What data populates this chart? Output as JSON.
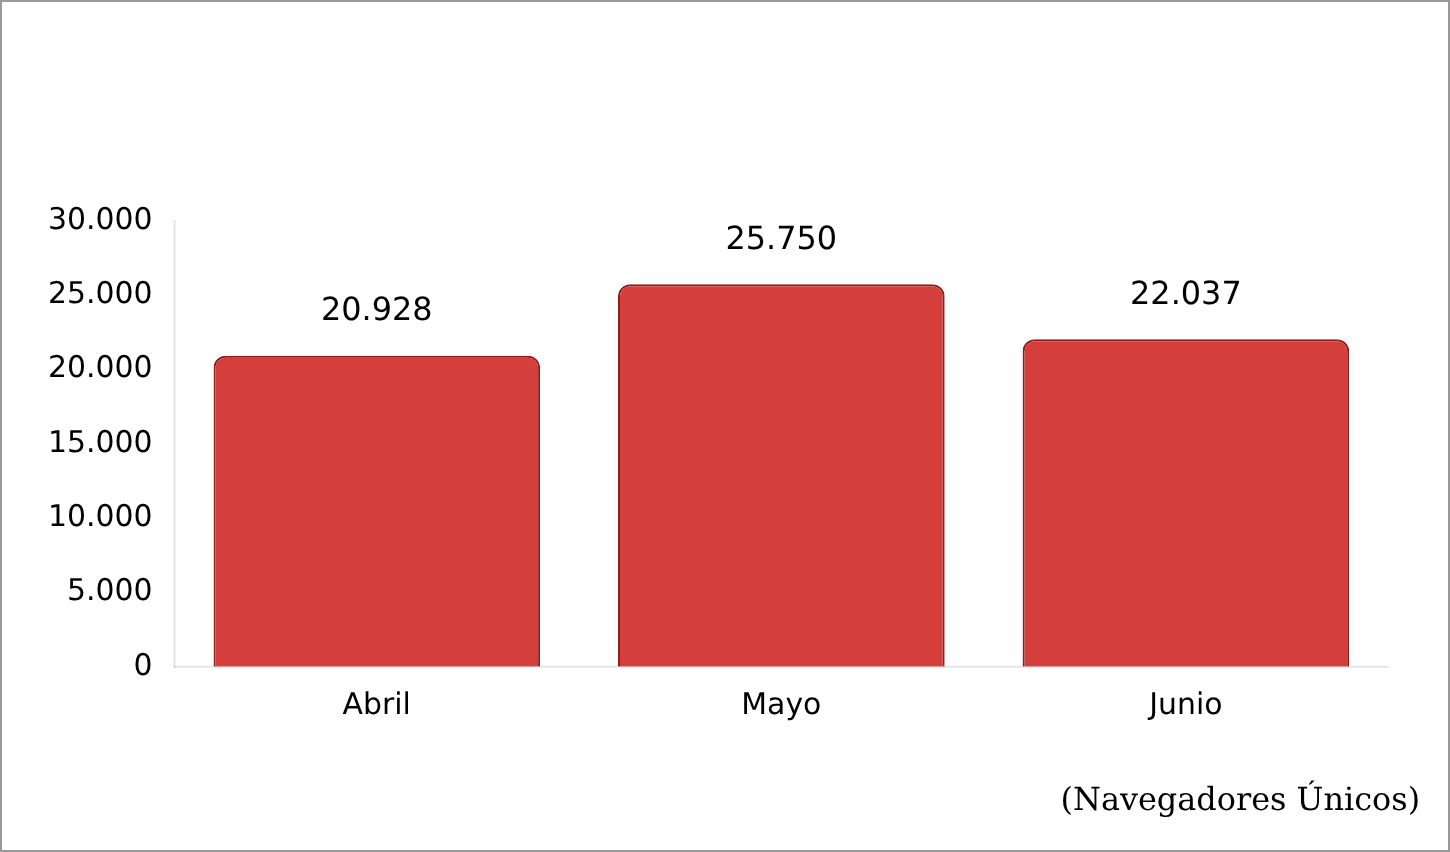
{
  "chart_data": {
    "type": "bar",
    "categories": [
      "Abril",
      "Mayo",
      "Junio"
    ],
    "values": [
      20928,
      25750,
      22037
    ],
    "value_labels": [
      "20.928",
      "25.750",
      "22.037"
    ],
    "color": "#d43f3c",
    "ylim": [
      0,
      30000
    ],
    "yticks": [
      {
        "value": 0,
        "label": "0"
      },
      {
        "value": 5000,
        "label": "5.000"
      },
      {
        "value": 10000,
        "label": "10.000"
      },
      {
        "value": 15000,
        "label": "15.000"
      },
      {
        "value": 20000,
        "label": "20.000"
      },
      {
        "value": 25000,
        "label": "25.000"
      },
      {
        "value": 30000,
        "label": "30.000"
      }
    ],
    "grid": false,
    "legend": false,
    "annotations": [
      "(Navegadores Únicos)"
    ]
  }
}
